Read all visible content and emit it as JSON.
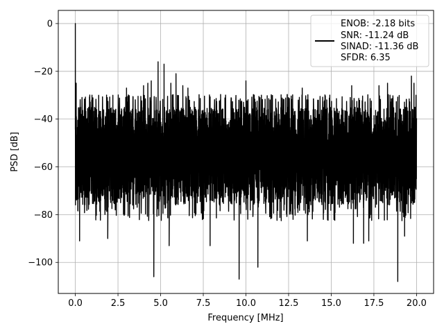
{
  "chart_data": {
    "type": "line",
    "xlabel": "Frequency [MHz]",
    "ylabel": "PSD [dB]",
    "xlim": [
      -1.0,
      21.0
    ],
    "ylim": [
      -113,
      5.5
    ],
    "xticks": [
      0.0,
      2.5,
      5.0,
      7.5,
      10.0,
      12.5,
      15.0,
      17.5,
      20.0
    ],
    "xtick_labels": [
      "0.0",
      "2.5",
      "5.0",
      "7.5",
      "10.0",
      "12.5",
      "15.0",
      "17.5",
      "20.0"
    ],
    "yticks": [
      0,
      -20,
      -40,
      -60,
      -80,
      -100
    ],
    "ytick_labels": [
      "0",
      "−20",
      "−40",
      "−60",
      "−80",
      "−100"
    ],
    "grid": true,
    "legend_position": "top-right",
    "series": [
      {
        "color": "#000000",
        "noise_band": {
          "x_start": 0.0,
          "x_end": 20.0,
          "upper_db": -35,
          "lower_db": -76
        },
        "peaks": [
          {
            "x": 0.0,
            "y": 0.0
          },
          {
            "x": 0.05,
            "y": -25
          },
          {
            "x": 3.0,
            "y": -27
          },
          {
            "x": 4.0,
            "y": -26
          },
          {
            "x": 4.25,
            "y": -25
          },
          {
            "x": 4.45,
            "y": -24
          },
          {
            "x": 4.85,
            "y": -16
          },
          {
            "x": 5.2,
            "y": -17
          },
          {
            "x": 5.6,
            "y": -25
          },
          {
            "x": 5.9,
            "y": -21
          },
          {
            "x": 6.3,
            "y": -26
          },
          {
            "x": 6.6,
            "y": -27
          },
          {
            "x": 10.0,
            "y": -24
          },
          {
            "x": 13.3,
            "y": -27
          },
          {
            "x": 16.2,
            "y": -26
          },
          {
            "x": 17.8,
            "y": -26
          },
          {
            "x": 18.3,
            "y": -25
          },
          {
            "x": 19.7,
            "y": -22
          },
          {
            "x": 19.85,
            "y": -25
          }
        ],
        "dips": [
          {
            "x": 0.25,
            "y": -91
          },
          {
            "x": 1.9,
            "y": -90
          },
          {
            "x": 4.6,
            "y": -106
          },
          {
            "x": 5.5,
            "y": -93
          },
          {
            "x": 7.9,
            "y": -93
          },
          {
            "x": 9.6,
            "y": -107
          },
          {
            "x": 10.7,
            "y": -102
          },
          {
            "x": 13.6,
            "y": -91
          },
          {
            "x": 16.3,
            "y": -92
          },
          {
            "x": 16.9,
            "y": -92
          },
          {
            "x": 17.2,
            "y": -91
          },
          {
            "x": 18.9,
            "y": -108
          },
          {
            "x": 19.3,
            "y": -89
          }
        ]
      }
    ],
    "legend": {
      "lines": [
        "ENOB: -2.18 bits",
        "SNR: -11.24 dB",
        "SINAD: -11.36 dB",
        "SFDR: 6.35"
      ]
    }
  }
}
